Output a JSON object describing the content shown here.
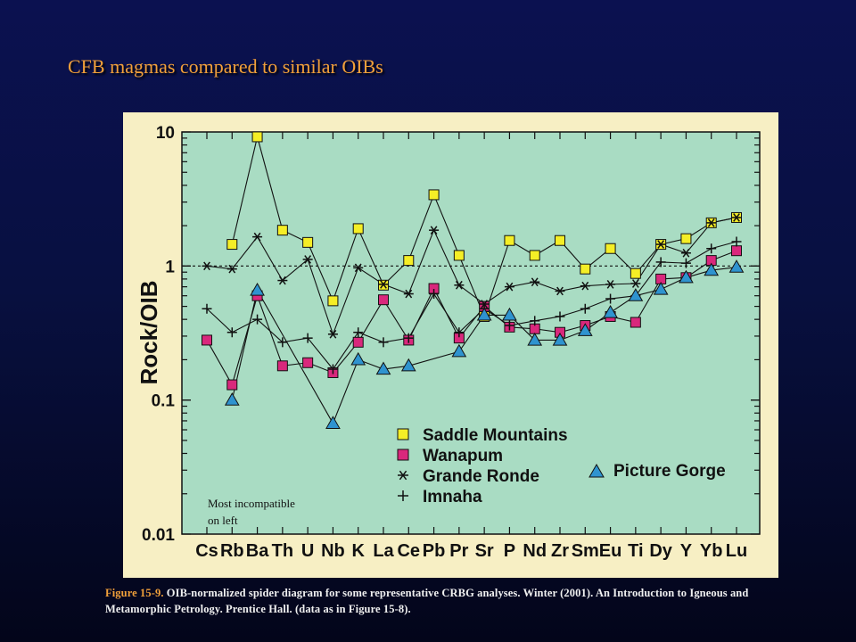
{
  "slide": {
    "title": "CFB magmas compared to similar OIBs"
  },
  "caption": {
    "figref": "Figure 15-9.",
    "text": "OIB-normalized spider diagram for some representative CRBG analyses. Winter (2001). An Introduction to Igneous and Metamorphic Petrology. Prentice Hall. (data as in Figure 15-8)."
  },
  "annotation": {
    "line1": "Most incompatible",
    "line2": "on left"
  },
  "colors": {
    "plot_background": "#a9dcc3",
    "frame_background": "#f7efc4",
    "saddle_mountains": "#f5ee26",
    "wanapum": "#d9287c",
    "picture_gorge": "#2f93cf"
  },
  "chart_data": {
    "type": "line",
    "yscale": "log",
    "ylim": [
      0.01,
      10
    ],
    "ylabel": "Rock/OIB",
    "yticks": [
      {
        "value": 10,
        "label": "10"
      },
      {
        "value": 1,
        "label": "1"
      },
      {
        "value": 0.1,
        "label": "0.1"
      },
      {
        "value": 0.01,
        "label": "0.01"
      }
    ],
    "reference_line": 1,
    "categories": [
      "Cs",
      "Rb",
      "Ba",
      "Th",
      "U",
      "Nb",
      "K",
      "La",
      "Ce",
      "Pb",
      "Pr",
      "Sr",
      "P",
      "Nd",
      "Zr",
      "Sm",
      "Eu",
      "Ti",
      "Dy",
      "Y",
      "Yb",
      "Lu"
    ],
    "legend": [
      {
        "series": "Saddle Mountains",
        "label": "Saddle Mountains"
      },
      {
        "series": "Wanapum",
        "label": "Wanapum"
      },
      {
        "series": "Grande Ronde",
        "label": "Grande Ronde"
      },
      {
        "series": "Imnaha",
        "label": "Imnaha"
      },
      {
        "series": "Picture Gorge",
        "label": "Picture Gorge"
      }
    ],
    "series": [
      {
        "name": "Saddle Mountains",
        "marker": "square",
        "color": "#f5ee26",
        "values": [
          null,
          1.45,
          9.2,
          1.85,
          1.5,
          0.55,
          1.9,
          0.72,
          1.1,
          3.4,
          1.2,
          0.42,
          1.55,
          1.2,
          1.55,
          0.95,
          1.35,
          0.88,
          1.45,
          1.6,
          2.1,
          2.3
        ]
      },
      {
        "name": "Wanapum",
        "marker": "square",
        "color": "#d9287c",
        "values": [
          0.28,
          0.13,
          0.6,
          0.18,
          0.19,
          0.16,
          0.27,
          0.56,
          0.28,
          0.68,
          0.29,
          0.5,
          0.35,
          0.34,
          0.32,
          0.36,
          0.42,
          0.38,
          0.8,
          0.82,
          1.1,
          1.3
        ]
      },
      {
        "name": "Grande Ronde",
        "marker": "asterisk",
        "color": "#111111",
        "values": [
          1.0,
          0.95,
          1.65,
          0.78,
          1.12,
          0.31,
          0.97,
          0.73,
          0.62,
          1.85,
          0.72,
          0.52,
          0.7,
          0.76,
          0.65,
          0.71,
          0.73,
          0.74,
          1.45,
          1.25,
          2.1,
          2.3
        ]
      },
      {
        "name": "Imnaha",
        "marker": "plus",
        "color": "#111111",
        "values": [
          0.48,
          0.32,
          0.4,
          0.27,
          0.29,
          0.17,
          0.32,
          0.27,
          0.29,
          0.62,
          0.32,
          0.48,
          0.36,
          0.39,
          0.42,
          0.48,
          0.57,
          0.6,
          1.07,
          1.05,
          1.35,
          1.52
        ]
      },
      {
        "name": "Picture Gorge",
        "marker": "triangle",
        "color": "#2f93cf",
        "values": [
          null,
          0.1,
          0.66,
          null,
          null,
          0.067,
          0.2,
          0.17,
          0.18,
          null,
          0.23,
          0.43,
          0.43,
          0.28,
          0.28,
          0.33,
          0.45,
          0.6,
          0.67,
          0.82,
          0.93,
          0.98
        ]
      }
    ]
  }
}
